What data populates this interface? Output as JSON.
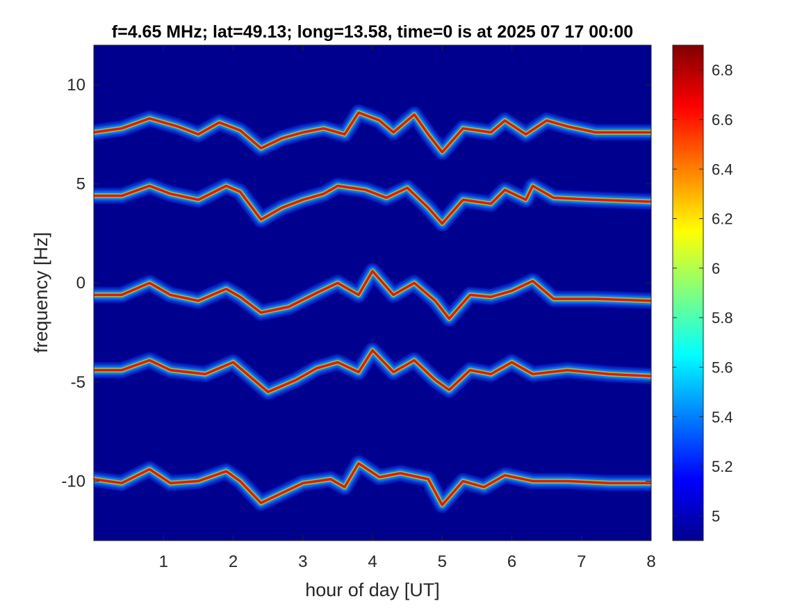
{
  "chart_data": {
    "type": "heatmap",
    "title": "f=4.65 MHz;  lat=49.13; long=13.58, time=0 is at 2025 07 17 00:00",
    "xlabel": "hour of day [UT]",
    "ylabel": "frequency [Hz]",
    "xlim": [
      0,
      8
    ],
    "ylim": [
      -13,
      12
    ],
    "x_ticks": [
      1,
      2,
      3,
      4,
      5,
      6,
      7,
      8
    ],
    "x_tick_labels": [
      "1",
      "2",
      "3",
      "4",
      "5",
      "6",
      "7",
      "8"
    ],
    "y_ticks": [
      -10,
      -5,
      0,
      5,
      10
    ],
    "y_tick_labels": [
      "-10",
      "-5",
      "0",
      "5",
      "10"
    ],
    "colormap": "jet",
    "background_color": "#00008f",
    "colorbar": {
      "clim": [
        4.9,
        6.9
      ],
      "ticks": [
        5,
        5.2,
        5.4,
        5.6,
        5.8,
        6,
        6.2,
        6.4,
        6.6,
        6.8
      ],
      "tick_labels": [
        "5",
        "5.2",
        "5.4",
        "5.6",
        "5.8",
        "6",
        "6.2",
        "6.4",
        "6.6",
        "6.8"
      ]
    },
    "series": [
      {
        "offset_hz": 7.5,
        "trace": [
          [
            0,
            7.6
          ],
          [
            0.4,
            7.8
          ],
          [
            0.8,
            8.3
          ],
          [
            1.2,
            7.9
          ],
          [
            1.5,
            7.5
          ],
          [
            1.8,
            8.1
          ],
          [
            2.1,
            7.7
          ],
          [
            2.4,
            6.8
          ],
          [
            2.7,
            7.3
          ],
          [
            3.0,
            7.6
          ],
          [
            3.3,
            7.8
          ],
          [
            3.6,
            7.5
          ],
          [
            3.8,
            8.6
          ],
          [
            4.1,
            8.2
          ],
          [
            4.3,
            7.6
          ],
          [
            4.6,
            8.5
          ],
          [
            4.8,
            7.5
          ],
          [
            5.0,
            6.6
          ],
          [
            5.3,
            7.8
          ],
          [
            5.7,
            7.6
          ],
          [
            5.9,
            8.2
          ],
          [
            6.2,
            7.5
          ],
          [
            6.5,
            8.2
          ],
          [
            6.8,
            7.9
          ],
          [
            7.2,
            7.6
          ],
          [
            8.0,
            7.6
          ]
        ]
      },
      {
        "offset_hz": 4.5,
        "trace": [
          [
            0,
            4.4
          ],
          [
            0.4,
            4.4
          ],
          [
            0.8,
            4.9
          ],
          [
            1.1,
            4.5
          ],
          [
            1.5,
            4.2
          ],
          [
            1.9,
            4.9
          ],
          [
            2.1,
            4.6
          ],
          [
            2.4,
            3.2
          ],
          [
            2.7,
            3.8
          ],
          [
            3.0,
            4.2
          ],
          [
            3.3,
            4.5
          ],
          [
            3.5,
            4.9
          ],
          [
            3.9,
            4.7
          ],
          [
            4.2,
            4.3
          ],
          [
            4.5,
            4.8
          ],
          [
            4.8,
            3.8
          ],
          [
            5.0,
            3.0
          ],
          [
            5.3,
            4.2
          ],
          [
            5.7,
            4.0
          ],
          [
            5.9,
            4.7
          ],
          [
            6.2,
            4.2
          ],
          [
            6.3,
            4.9
          ],
          [
            6.6,
            4.3
          ],
          [
            7.2,
            4.2
          ],
          [
            8.0,
            4.1
          ]
        ]
      },
      {
        "offset_hz": -0.6,
        "trace": [
          [
            0,
            -0.6
          ],
          [
            0.4,
            -0.6
          ],
          [
            0.8,
            0.0
          ],
          [
            1.1,
            -0.6
          ],
          [
            1.5,
            -0.9
          ],
          [
            1.9,
            -0.3
          ],
          [
            2.1,
            -0.7
          ],
          [
            2.4,
            -1.5
          ],
          [
            2.8,
            -1.2
          ],
          [
            3.2,
            -0.5
          ],
          [
            3.5,
            0.0
          ],
          [
            3.8,
            -0.6
          ],
          [
            4.0,
            0.6
          ],
          [
            4.3,
            -0.6
          ],
          [
            4.6,
            0.0
          ],
          [
            4.9,
            -0.9
          ],
          [
            5.1,
            -1.8
          ],
          [
            5.4,
            -0.6
          ],
          [
            5.7,
            -0.7
          ],
          [
            6.0,
            -0.4
          ],
          [
            6.3,
            0.1
          ],
          [
            6.6,
            -0.8
          ],
          [
            7.2,
            -0.8
          ],
          [
            8.0,
            -0.9
          ]
        ]
      },
      {
        "offset_hz": -4.4,
        "trace": [
          [
            0,
            -4.4
          ],
          [
            0.4,
            -4.4
          ],
          [
            0.8,
            -3.9
          ],
          [
            1.1,
            -4.4
          ],
          [
            1.6,
            -4.6
          ],
          [
            2.0,
            -4.0
          ],
          [
            2.2,
            -4.6
          ],
          [
            2.5,
            -5.5
          ],
          [
            2.9,
            -4.9
          ],
          [
            3.2,
            -4.3
          ],
          [
            3.5,
            -4.0
          ],
          [
            3.8,
            -4.5
          ],
          [
            4.0,
            -3.4
          ],
          [
            4.3,
            -4.5
          ],
          [
            4.6,
            -3.9
          ],
          [
            4.9,
            -4.9
          ],
          [
            5.1,
            -5.4
          ],
          [
            5.4,
            -4.4
          ],
          [
            5.7,
            -4.6
          ],
          [
            6.0,
            -4.0
          ],
          [
            6.3,
            -4.6
          ],
          [
            6.8,
            -4.4
          ],
          [
            7.4,
            -4.6
          ],
          [
            8.0,
            -4.7
          ]
        ]
      },
      {
        "offset_hz": -9.9,
        "trace": [
          [
            0,
            -9.9
          ],
          [
            0.4,
            -10.1
          ],
          [
            0.8,
            -9.4
          ],
          [
            1.1,
            -10.1
          ],
          [
            1.5,
            -10.0
          ],
          [
            1.9,
            -9.5
          ],
          [
            2.1,
            -10.0
          ],
          [
            2.4,
            -11.1
          ],
          [
            2.7,
            -10.6
          ],
          [
            3.0,
            -10.1
          ],
          [
            3.4,
            -9.9
          ],
          [
            3.6,
            -10.3
          ],
          [
            3.8,
            -9.1
          ],
          [
            4.1,
            -9.8
          ],
          [
            4.4,
            -9.6
          ],
          [
            4.8,
            -9.9
          ],
          [
            5.0,
            -11.2
          ],
          [
            5.3,
            -10.0
          ],
          [
            5.6,
            -10.3
          ],
          [
            5.9,
            -9.7
          ],
          [
            6.3,
            -10.0
          ],
          [
            6.8,
            -10.0
          ],
          [
            7.4,
            -10.1
          ],
          [
            8.0,
            -10.1
          ]
        ]
      }
    ]
  }
}
